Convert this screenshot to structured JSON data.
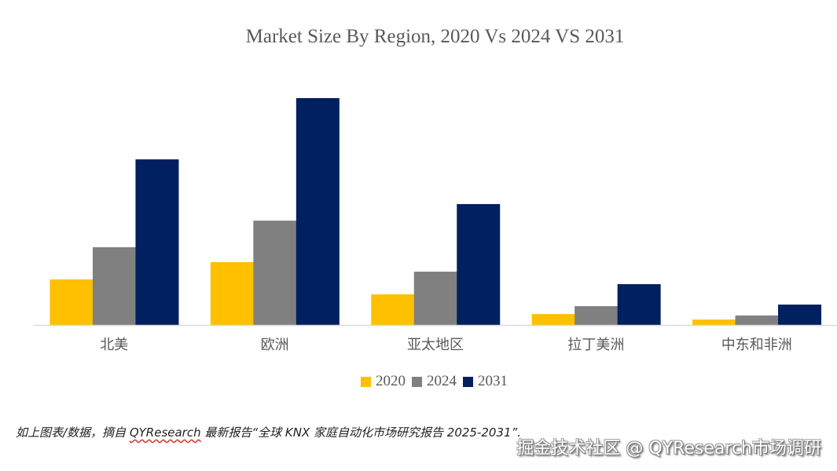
{
  "chart_data": {
    "type": "bar",
    "title": "Market Size By Region, 2020 Vs 2024 VS 2031",
    "xlabel": "",
    "ylabel": "",
    "ylim": [
      0,
      100
    ],
    "grid": false,
    "legend_position": "bottom",
    "categories": [
      "北美",
      "欧洲",
      "亚太地区",
      "拉丁美洲",
      "中东和非洲"
    ],
    "series": [
      {
        "name": "2020",
        "color": "#FFC000",
        "values": [
          20.1,
          27.7,
          13.5,
          4.8,
          2.4
        ]
      },
      {
        "name": "2024",
        "color": "#808080",
        "values": [
          34.3,
          46.0,
          23.5,
          8.3,
          4.2
        ]
      },
      {
        "name": "2031",
        "color": "#002060",
        "values": [
          73.0,
          100,
          53.3,
          18.0,
          9.0
        ]
      }
    ]
  },
  "footer": {
    "source_prefix": "如上图表/数据，摘自 ",
    "source_brand": "QYResearch",
    "source_suffix": " 最新报告“全球 KNX 家庭自动化市场研究报告 2025-2031”.",
    "watermark": "掘金技术社区 @ QYResearch市场调研"
  }
}
